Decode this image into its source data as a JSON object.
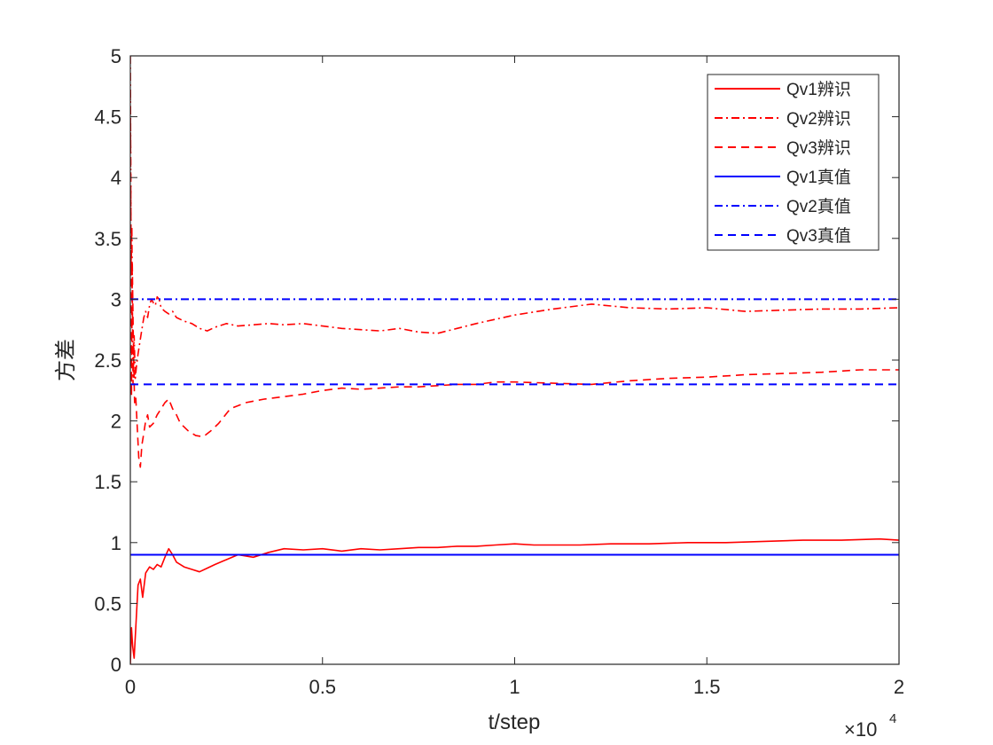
{
  "chart_data": {
    "type": "line",
    "title": "",
    "xlabel": "t/step",
    "ylabel": "方差",
    "x_exponent_label": "×10",
    "x_exponent_power": "4",
    "xlim": [
      0,
      20000
    ],
    "ylim": [
      0,
      5
    ],
    "xticks": [
      0,
      5000,
      10000,
      15000,
      20000
    ],
    "xtick_labels": [
      "0",
      "0.5",
      "1",
      "1.5",
      "2"
    ],
    "yticks": [
      0,
      0.5,
      1,
      1.5,
      2,
      2.5,
      3,
      3.5,
      4,
      4.5,
      5
    ],
    "ytick_labels": [
      "0",
      "0.5",
      "1",
      "1.5",
      "2",
      "2.5",
      "3",
      "3.5",
      "4",
      "4.5",
      "5"
    ],
    "grid": false,
    "legend_position": "top-right",
    "series": [
      {
        "name": "Qv1辨识",
        "color": "#ff0000",
        "dash": "solid",
        "x": [
          0,
          30,
          60,
          100,
          150,
          200,
          260,
          320,
          400,
          500,
          600,
          700,
          800,
          900,
          1000,
          1100,
          1200,
          1400,
          1600,
          1800,
          2000,
          2200,
          2500,
          2800,
          3200,
          3600,
          4000,
          4500,
          5000,
          5500,
          6000,
          6500,
          7000,
          7500,
          8000,
          8500,
          9000,
          9500,
          10000,
          10500,
          11000,
          11700,
          12500,
          13500,
          14500,
          15500,
          16500,
          17500,
          18500,
          19500,
          20000
        ],
        "y": [
          0,
          0.3,
          0.15,
          0.05,
          0.35,
          0.65,
          0.7,
          0.55,
          0.75,
          0.8,
          0.78,
          0.82,
          0.8,
          0.88,
          0.95,
          0.9,
          0.84,
          0.8,
          0.78,
          0.76,
          0.79,
          0.82,
          0.86,
          0.9,
          0.88,
          0.92,
          0.95,
          0.94,
          0.95,
          0.93,
          0.95,
          0.94,
          0.95,
          0.96,
          0.96,
          0.97,
          0.97,
          0.98,
          0.99,
          0.98,
          0.98,
          0.98,
          0.99,
          0.99,
          1.0,
          1.0,
          1.01,
          1.02,
          1.02,
          1.03,
          1.02
        ]
      },
      {
        "name": "Qv2辨识",
        "color": "#ff0000",
        "dash": "dashdot",
        "x": [
          0,
          20,
          40,
          70,
          100,
          130,
          160,
          200,
          250,
          300,
          350,
          400,
          450,
          500,
          550,
          600,
          650,
          700,
          750,
          800,
          900,
          1000,
          1100,
          1200,
          1400,
          1600,
          1800,
          2000,
          2200,
          2500,
          2800,
          3200,
          3600,
          4000,
          4500,
          5000,
          5500,
          6000,
          6500,
          7000,
          7500,
          8000,
          8500,
          9000,
          10000,
          11000,
          12000,
          13000,
          14000,
          15000,
          16000,
          17000,
          18000,
          19000,
          20000
        ],
        "y": [
          5,
          3.2,
          3.6,
          2.3,
          2.7,
          2.35,
          2.45,
          2.55,
          2.65,
          2.75,
          2.85,
          2.9,
          2.85,
          2.95,
          3.0,
          2.97,
          2.95,
          3.02,
          3.0,
          2.93,
          2.9,
          2.88,
          2.9,
          2.85,
          2.82,
          2.8,
          2.76,
          2.74,
          2.77,
          2.8,
          2.78,
          2.79,
          2.8,
          2.79,
          2.8,
          2.78,
          2.76,
          2.75,
          2.74,
          2.76,
          2.73,
          2.72,
          2.76,
          2.8,
          2.87,
          2.92,
          2.96,
          2.93,
          2.92,
          2.93,
          2.9,
          2.91,
          2.92,
          2.92,
          2.93
        ]
      },
      {
        "name": "Qv3辨识",
        "color": "#ff0000",
        "dash": "dashed",
        "x": [
          0,
          15,
          30,
          50,
          80,
          110,
          140,
          180,
          220,
          260,
          300,
          350,
          400,
          450,
          500,
          600,
          700,
          800,
          900,
          1000,
          1100,
          1200,
          1300,
          1500,
          1700,
          1900,
          2100,
          2300,
          2600,
          3000,
          3500,
          4000,
          4500,
          5000,
          5500,
          6000,
          6500,
          7000,
          7500,
          8000,
          8500,
          9000,
          9500,
          10000,
          11000,
          12000,
          13000,
          14000,
          15000,
          16000,
          17000,
          18000,
          19000,
          20000
        ],
        "y": [
          4.7,
          3.6,
          2.2,
          3.3,
          2.6,
          2.15,
          2.2,
          1.95,
          1.7,
          1.62,
          1.8,
          1.9,
          2.0,
          2.05,
          1.95,
          1.98,
          2.05,
          2.1,
          2.15,
          2.18,
          2.1,
          2.05,
          1.98,
          1.92,
          1.88,
          1.87,
          1.92,
          1.98,
          2.1,
          2.15,
          2.18,
          2.2,
          2.22,
          2.25,
          2.27,
          2.26,
          2.27,
          2.28,
          2.28,
          2.29,
          2.3,
          2.3,
          2.32,
          2.32,
          2.31,
          2.3,
          2.33,
          2.35,
          2.36,
          2.38,
          2.39,
          2.4,
          2.42,
          2.42
        ]
      },
      {
        "name": "Qv1真值",
        "color": "#0000ff",
        "dash": "solid",
        "x": [
          0,
          20000
        ],
        "y": [
          0.9,
          0.9
        ]
      },
      {
        "name": "Qv2真值",
        "color": "#0000ff",
        "dash": "dashdot",
        "x": [
          0,
          20000
        ],
        "y": [
          3.0,
          3.0
        ]
      },
      {
        "name": "Qv3真值",
        "color": "#0000ff",
        "dash": "dashed",
        "x": [
          0,
          20000
        ],
        "y": [
          2.3,
          2.3
        ]
      }
    ]
  }
}
